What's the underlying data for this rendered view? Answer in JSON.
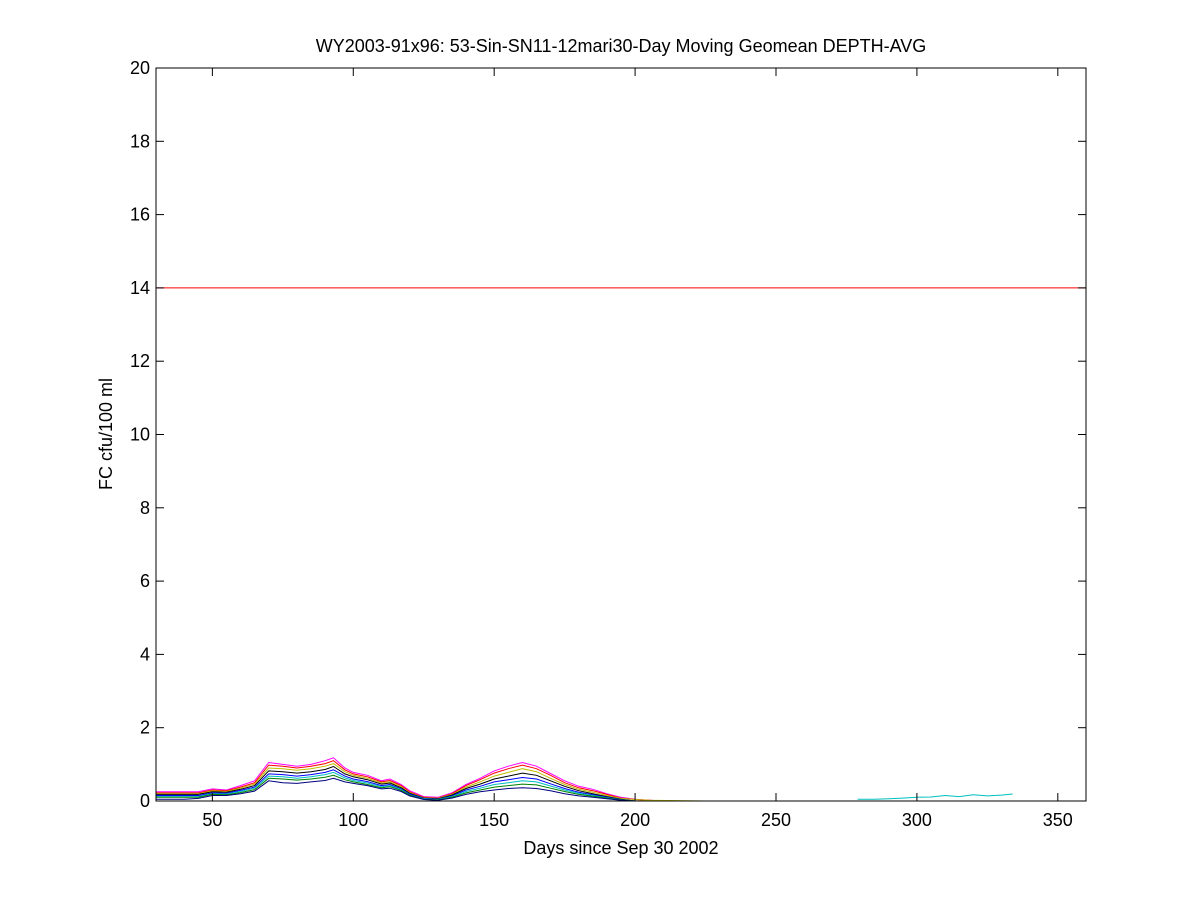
{
  "chart_data": {
    "type": "line",
    "title": "WY2003-91x96: 53-Sin-SN11-12mari30-Day Moving Geomean DEPTH-AVG",
    "xlabel": "Days since Sep 30 2002",
    "ylabel": "FC cfu/100 ml",
    "xlim": [
      30,
      360
    ],
    "ylim": [
      0,
      20
    ],
    "xticks": [
      50,
      100,
      150,
      200,
      250,
      300,
      350
    ],
    "yticks": [
      0,
      2,
      4,
      6,
      8,
      10,
      12,
      14,
      16,
      18,
      20
    ],
    "grid": false,
    "reference_line": {
      "y": 14,
      "color": "#ff0000"
    },
    "series": [
      {
        "color": "#ff00ff",
        "x": [
          30,
          40,
          45,
          50,
          55,
          60,
          65,
          70,
          75,
          80,
          85,
          90,
          93,
          97,
          100,
          105,
          110,
          113,
          117,
          120,
          125,
          130,
          135,
          140,
          145,
          150,
          155,
          160,
          165,
          170,
          175,
          180,
          185,
          190,
          195,
          200,
          205,
          210
        ],
        "y": [
          0.25,
          0.25,
          0.25,
          0.33,
          0.3,
          0.42,
          0.55,
          1.05,
          1.0,
          0.95,
          1.0,
          1.1,
          1.18,
          0.9,
          0.78,
          0.7,
          0.55,
          0.6,
          0.45,
          0.28,
          0.12,
          0.1,
          0.22,
          0.45,
          0.62,
          0.82,
          0.95,
          1.05,
          0.95,
          0.75,
          0.55,
          0.4,
          0.32,
          0.2,
          0.1,
          0.05,
          0.02,
          0
        ]
      },
      {
        "color": "#ff0000",
        "x": [
          30,
          40,
          45,
          50,
          55,
          60,
          65,
          70,
          75,
          80,
          85,
          90,
          93,
          97,
          100,
          105,
          110,
          113,
          117,
          120,
          125,
          130,
          135,
          140,
          145,
          150,
          155,
          160,
          165,
          170,
          175,
          180,
          185,
          190,
          195,
          200,
          205,
          210
        ],
        "y": [
          0.22,
          0.22,
          0.22,
          0.3,
          0.28,
          0.38,
          0.5,
          0.98,
          0.95,
          0.9,
          0.95,
          1.02,
          1.1,
          0.85,
          0.74,
          0.66,
          0.52,
          0.56,
          0.42,
          0.25,
          0.1,
          0.08,
          0.2,
          0.42,
          0.58,
          0.76,
          0.88,
          0.98,
          0.88,
          0.7,
          0.5,
          0.36,
          0.28,
          0.18,
          0.08,
          0.04,
          0.02,
          0
        ]
      },
      {
        "color": "#bfbf00",
        "x": [
          30,
          40,
          45,
          50,
          55,
          60,
          65,
          70,
          75,
          80,
          85,
          90,
          93,
          97,
          100,
          105,
          110,
          113,
          117,
          120,
          125,
          130,
          135,
          140,
          145,
          150,
          155,
          160,
          165,
          170,
          175,
          180,
          185,
          190,
          195,
          200,
          205,
          215,
          225
        ],
        "y": [
          0.2,
          0.2,
          0.2,
          0.28,
          0.26,
          0.35,
          0.46,
          0.9,
          0.88,
          0.84,
          0.88,
          0.95,
          1.02,
          0.8,
          0.7,
          0.62,
          0.49,
          0.52,
          0.39,
          0.23,
          0.09,
          0.07,
          0.18,
          0.38,
          0.52,
          0.68,
          0.78,
          0.88,
          0.8,
          0.62,
          0.45,
          0.32,
          0.24,
          0.15,
          0.07,
          0.04,
          0.02,
          0.01,
          0
        ]
      },
      {
        "color": "#000000",
        "x": [
          30,
          40,
          45,
          50,
          55,
          60,
          65,
          70,
          75,
          80,
          85,
          90,
          93,
          97,
          100,
          105,
          110,
          113,
          117,
          120,
          125,
          130,
          135,
          140,
          145,
          150,
          155,
          160,
          165,
          170,
          175,
          180,
          185,
          190,
          195,
          200
        ],
        "y": [
          0.18,
          0.18,
          0.18,
          0.25,
          0.24,
          0.32,
          0.42,
          0.82,
          0.8,
          0.76,
          0.8,
          0.86,
          0.94,
          0.74,
          0.66,
          0.58,
          0.46,
          0.49,
          0.36,
          0.21,
          0.08,
          0.06,
          0.16,
          0.34,
          0.46,
          0.6,
          0.68,
          0.76,
          0.7,
          0.55,
          0.4,
          0.28,
          0.2,
          0.12,
          0.05,
          0
        ]
      },
      {
        "color": "#0000ff",
        "x": [
          30,
          40,
          45,
          50,
          55,
          60,
          65,
          70,
          75,
          80,
          85,
          90,
          93,
          97,
          100,
          105,
          110,
          113,
          117,
          120,
          125,
          130,
          135,
          140,
          145,
          150,
          155,
          160,
          165,
          170,
          175,
          180,
          185,
          190,
          195,
          200
        ],
        "y": [
          0.15,
          0.15,
          0.15,
          0.22,
          0.21,
          0.29,
          0.38,
          0.74,
          0.72,
          0.68,
          0.72,
          0.78,
          0.85,
          0.68,
          0.6,
          0.53,
          0.42,
          0.45,
          0.33,
          0.19,
          0.07,
          0.05,
          0.14,
          0.3,
          0.4,
          0.52,
          0.58,
          0.64,
          0.6,
          0.47,
          0.34,
          0.24,
          0.17,
          0.1,
          0.04,
          0
        ]
      },
      {
        "color": "#00bfbf",
        "x": [
          30,
          40,
          45,
          50,
          55,
          60,
          65,
          70,
          75,
          80,
          85,
          90,
          93,
          97,
          100,
          105,
          110,
          113,
          117,
          120,
          125,
          130,
          135,
          140,
          145,
          150,
          155,
          160,
          165,
          170,
          175,
          180,
          185,
          190,
          195,
          200
        ],
        "y": [
          0.12,
          0.12,
          0.12,
          0.2,
          0.19,
          0.26,
          0.35,
          0.68,
          0.66,
          0.62,
          0.66,
          0.72,
          0.78,
          0.63,
          0.56,
          0.49,
          0.39,
          0.42,
          0.31,
          0.17,
          0.06,
          0.04,
          0.12,
          0.26,
          0.35,
          0.45,
          0.5,
          0.55,
          0.52,
          0.41,
          0.3,
          0.21,
          0.15,
          0.09,
          0.03,
          0
        ]
      },
      {
        "color": "#008000",
        "x": [
          30,
          40,
          45,
          50,
          55,
          60,
          65,
          70,
          75,
          80,
          85,
          90,
          93,
          97,
          100,
          105,
          110,
          113,
          117,
          120,
          125,
          130,
          135,
          140,
          145,
          150,
          155,
          160,
          165,
          170,
          175,
          180,
          185,
          190,
          195,
          200
        ],
        "y": [
          0.1,
          0.1,
          0.1,
          0.18,
          0.17,
          0.23,
          0.31,
          0.62,
          0.6,
          0.57,
          0.6,
          0.65,
          0.7,
          0.58,
          0.52,
          0.45,
          0.36,
          0.39,
          0.29,
          0.16,
          0.05,
          0.03,
          0.1,
          0.22,
          0.3,
          0.38,
          0.42,
          0.46,
          0.44,
          0.35,
          0.26,
          0.18,
          0.13,
          0.08,
          0.03,
          0
        ]
      },
      {
        "color": "#000080",
        "x": [
          30,
          40,
          45,
          50,
          55,
          60,
          65,
          70,
          75,
          80,
          85,
          90,
          93,
          97,
          100,
          105,
          110,
          113,
          117,
          120,
          125,
          130,
          135,
          140,
          145,
          150,
          155,
          160,
          165,
          170,
          175,
          180,
          185,
          190,
          195,
          200
        ],
        "y": [
          0.05,
          0.05,
          0.07,
          0.15,
          0.15,
          0.2,
          0.27,
          0.55,
          0.5,
          0.48,
          0.52,
          0.56,
          0.62,
          0.52,
          0.48,
          0.42,
          0.33,
          0.35,
          0.26,
          0.14,
          0.04,
          0.02,
          0.08,
          0.18,
          0.25,
          0.3,
          0.34,
          0.36,
          0.34,
          0.28,
          0.2,
          0.14,
          0.1,
          0.06,
          0.02,
          0
        ]
      },
      {
        "color": "#00bfbf",
        "x": [
          279,
          285,
          290,
          295,
          300,
          305,
          310,
          315,
          320,
          325,
          330,
          334
        ],
        "y": [
          0.05,
          0.05,
          0.06,
          0.08,
          0.1,
          0.11,
          0.15,
          0.12,
          0.17,
          0.14,
          0.16,
          0.19
        ]
      }
    ]
  }
}
